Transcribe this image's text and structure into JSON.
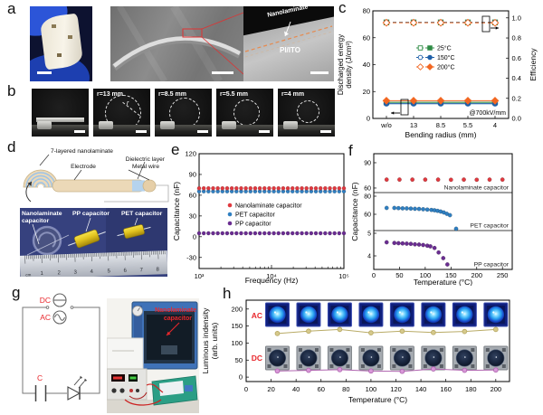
{
  "panels": {
    "a": {
      "letter": "a",
      "labels": [
        "Nanolaminate",
        "PI/ITO"
      ]
    },
    "b": {
      "letter": "b",
      "radius_labels": [
        "r=13 mm",
        "r=8.5 mm",
        "r=5.5 mm",
        "r=4 mm"
      ],
      "r_symbol": "r"
    },
    "c": {
      "letter": "c"
    },
    "d": {
      "letter": "d",
      "schematic": {
        "layers": "7-layered nanolaminate",
        "dielectric": "Dielectric layer",
        "electrode": "Electrode",
        "wire": "Metal wire"
      },
      "photo": {
        "cap1a": "Nanolaminate",
        "cap1b": "capacitor",
        "cap2": "PP capacitor",
        "cap3": "PET capacitor",
        "ruler_unit": "cm",
        "ruler_numbers": [
          "1",
          "2",
          "3",
          "4",
          "5",
          "6",
          "7",
          "8"
        ]
      }
    },
    "e": {
      "letter": "e"
    },
    "f": {
      "letter": "f"
    },
    "g": {
      "letter": "g",
      "circuit": {
        "dc": "DC",
        "ac": "AC",
        "cap": "C"
      },
      "photo_label_1": "Nanolaminate",
      "photo_label_2": "capacitor"
    },
    "h": {
      "letter": "h"
    }
  },
  "chart_data": [
    {
      "id": "c",
      "type": "line",
      "xlabel": "Bending radius (mm)",
      "ylabel_left": [
        "Discharged energy",
        "density (J/cm³)"
      ],
      "ylabel_right": "Efficiency",
      "categories": [
        "w/o",
        "13",
        "8.5",
        "5.5",
        "4"
      ],
      "yticks_left": [
        0,
        20,
        40,
        60,
        80
      ],
      "yticks_right": [
        "0.0",
        "0.2",
        "0.4",
        "0.6",
        "0.8",
        "1.0"
      ],
      "ylim_left": [
        0,
        80
      ],
      "ylim_right": [
        0,
        1.07
      ],
      "annotation": "@700kV/mm",
      "legend": [
        {
          "label": "25°C",
          "marker": "square",
          "color": "#2e8b44"
        },
        {
          "label": "150°C",
          "marker": "circle",
          "color": "#1f5fa8"
        },
        {
          "label": "200°C",
          "marker": "diamond",
          "color": "#f26722"
        }
      ],
      "series": [
        {
          "name": "25°C efficiency",
          "axis": "right",
          "marker": "square",
          "open": true,
          "dashed": true,
          "color": "#2e8b44",
          "values": [
            0.955,
            0.955,
            0.955,
            0.955,
            0.955
          ]
        },
        {
          "name": "150°C efficiency",
          "axis": "right",
          "marker": "circle",
          "open": true,
          "dashed": true,
          "color": "#1f5fa8",
          "values": [
            0.955,
            0.955,
            0.955,
            0.955,
            0.955
          ]
        },
        {
          "name": "200°C efficiency",
          "axis": "right",
          "marker": "diamond",
          "open": true,
          "dashed": true,
          "color": "#f26722",
          "values": [
            0.952,
            0.952,
            0.952,
            0.952,
            0.951
          ]
        },
        {
          "name": "25°C energy density",
          "axis": "left",
          "marker": "square",
          "open": false,
          "dashed": false,
          "color": "#2e8b44",
          "values": [
            12,
            12,
            12,
            12,
            12
          ]
        },
        {
          "name": "150°C energy density",
          "axis": "left",
          "marker": "circle",
          "open": false,
          "dashed": false,
          "color": "#1f5fa8",
          "values": [
            11,
            11,
            11,
            11,
            11
          ]
        },
        {
          "name": "200°C energy density",
          "axis": "left",
          "marker": "diamond",
          "open": false,
          "dashed": false,
          "color": "#f26722",
          "values": [
            13.2,
            13.2,
            13.2,
            13.2,
            13.2
          ]
        }
      ]
    },
    {
      "id": "e",
      "type": "scatter",
      "xlabel": "Frequency (Hz)",
      "ylabel": "Capacitance (nF)",
      "xscale": "log",
      "xlim": [
        1000,
        100000
      ],
      "xtick_labels": [
        "10³",
        "10⁴",
        "10⁵"
      ],
      "yticks": [
        -30,
        0,
        30,
        60,
        90,
        120
      ],
      "ylim": [
        -46,
        120
      ],
      "n_points": 32,
      "series": [
        {
          "name": "Nanolaminate capacitor",
          "color": "#e0393f",
          "value": 70
        },
        {
          "name": "PET capacitor",
          "color": "#2f7fc1",
          "value": 65.5
        },
        {
          "name": "PP capacitor",
          "color": "#6a2d91",
          "value": 5
        }
      ]
    },
    {
      "id": "f",
      "type": "scatter",
      "xlabel": "Temperature (°C)",
      "ylabel": "Capacitance (nF)",
      "xlim": [
        0,
        269
      ],
      "xticks": [
        0,
        50,
        100,
        150,
        200,
        250
      ],
      "subpanels": [
        {
          "label": "Nanolaminate capacitor",
          "color": "#e0393f",
          "yticks": [
            60,
            90
          ],
          "ylim": [
            54.6,
            100.7
          ],
          "points": [
            [
              25,
              70
            ],
            [
              50,
              70
            ],
            [
              75,
              70
            ],
            [
              100,
              70
            ],
            [
              125,
              70
            ],
            [
              150,
              69.8
            ],
            [
              175,
              70
            ],
            [
              200,
              69.8
            ],
            [
              225,
              70
            ],
            [
              250,
              70
            ]
          ]
        },
        {
          "label": "PET capacitor",
          "color": "#2f7fc1",
          "yticks": [
            60,
            80
          ],
          "ylim": [
            42,
            84
          ],
          "points": [
            [
              25,
              67
            ],
            [
              40,
              67
            ],
            [
              48,
              66.8
            ],
            [
              56,
              66.6
            ],
            [
              64,
              66.5
            ],
            [
              72,
              66.3
            ],
            [
              80,
              66.1
            ],
            [
              88,
              65.9
            ],
            [
              96,
              65.6
            ],
            [
              104,
              65.2
            ],
            [
              112,
              64.8
            ],
            [
              118,
              64.4
            ],
            [
              124,
              63.8
            ],
            [
              130,
              63
            ],
            [
              136,
              62
            ],
            [
              142,
              60.5
            ],
            [
              148,
              59
            ],
            [
              160,
              44
            ]
          ]
        },
        {
          "label": "PP capacitor",
          "color": "#6a2d91",
          "yticks": [
            4,
            5
          ],
          "ylim": [
            3.4,
            5.12
          ],
          "points": [
            [
              25,
              4.6
            ],
            [
              40,
              4.57
            ],
            [
              48,
              4.56
            ],
            [
              56,
              4.55
            ],
            [
              64,
              4.54
            ],
            [
              72,
              4.53
            ],
            [
              80,
              4.51
            ],
            [
              88,
              4.5
            ],
            [
              96,
              4.48
            ],
            [
              104,
              4.45
            ],
            [
              110,
              4.42
            ],
            [
              118,
              4.35
            ],
            [
              126,
              4.15
            ],
            [
              135,
              3.9
            ],
            [
              143,
              3.62
            ]
          ]
        }
      ]
    },
    {
      "id": "h",
      "type": "line",
      "xlabel": "Temperature (°C)",
      "ylabel": [
        "Luminous indensity",
        "(arb. units)"
      ],
      "xlim": [
        0,
        211
      ],
      "xticks": [
        0,
        20,
        40,
        60,
        80,
        100,
        120,
        140,
        160,
        180,
        200
      ],
      "yticks": [
        0,
        50,
        100,
        150,
        200
      ],
      "ylim": [
        -13,
        226
      ],
      "series": [
        {
          "name": "AC",
          "label_color": "#e8272c",
          "color": "#b9ab66",
          "marker_fill": "#d6c98c",
          "x": [
            25,
            50,
            75,
            100,
            125,
            150,
            175,
            200
          ],
          "values": [
            128,
            135,
            140,
            130,
            135,
            131,
            134,
            140
          ]
        },
        {
          "name": "DC",
          "label_color": "#e8272c",
          "color": "#b066b0",
          "marker_fill": "#d898d8",
          "x": [
            25,
            50,
            75,
            100,
            125,
            150,
            175,
            200
          ],
          "values": [
            18,
            20,
            22,
            18,
            17,
            24,
            20,
            21
          ]
        }
      ],
      "inset_rows": [
        {
          "name": "AC",
          "count": 8
        },
        {
          "name": "DC",
          "count": 8
        }
      ]
    }
  ]
}
